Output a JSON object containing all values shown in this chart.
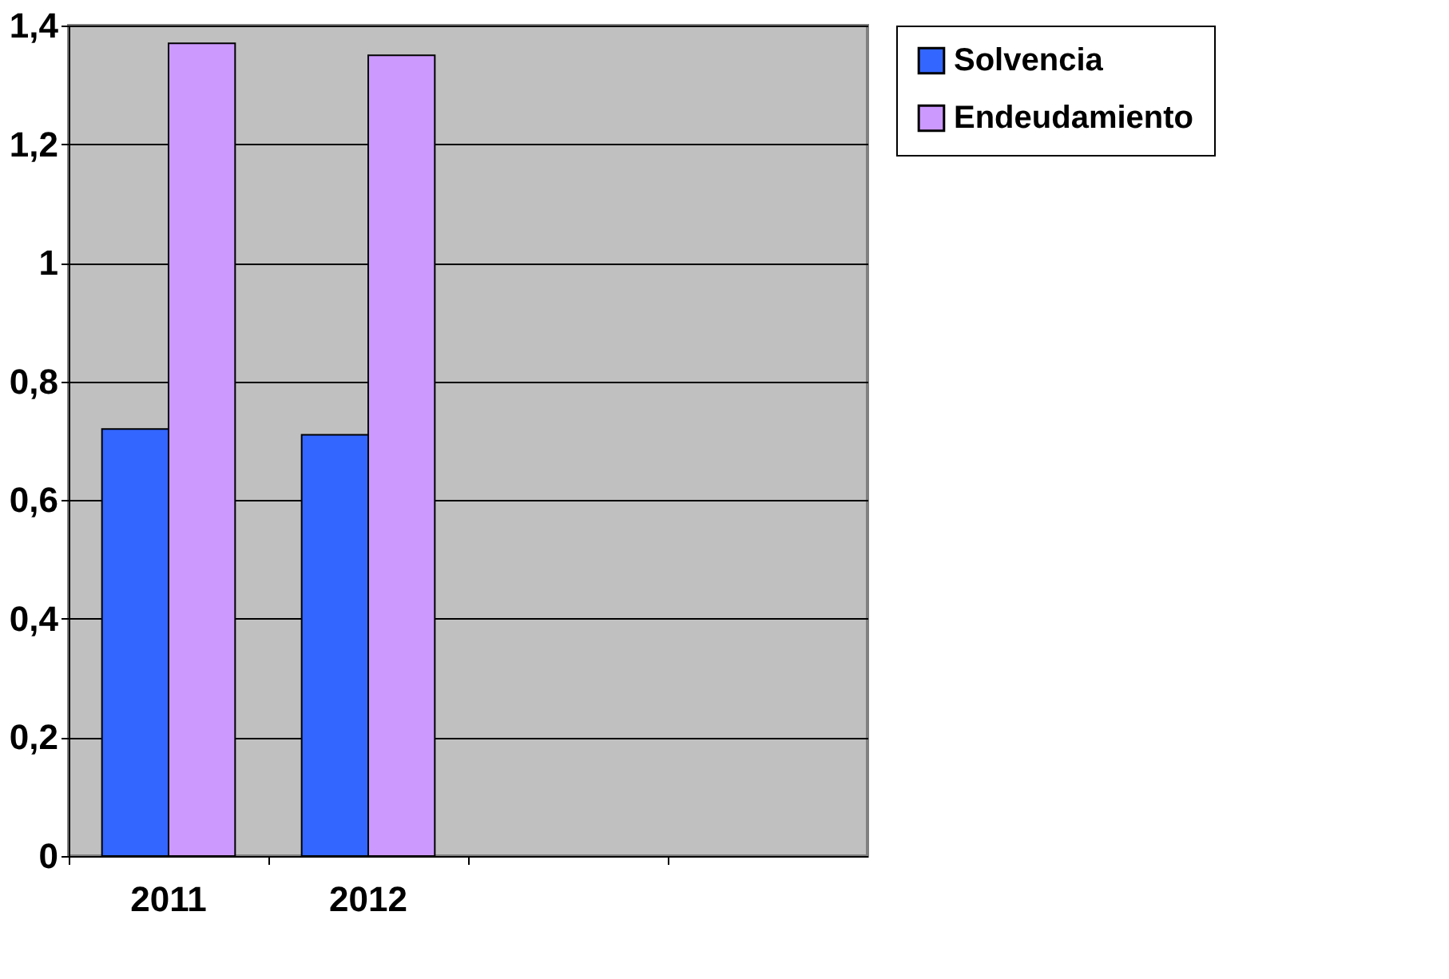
{
  "chart_data": {
    "type": "bar",
    "categories": [
      "2011",
      "2012",
      null,
      null
    ],
    "series": [
      {
        "name": "Solvencia",
        "color": "#3366ff",
        "values": [
          0.72,
          0.71,
          null,
          null
        ]
      },
      {
        "name": "Endeudamiento",
        "color": "#cc99ff",
        "values": [
          1.37,
          1.35,
          null,
          null
        ]
      }
    ],
    "ylim": [
      0,
      1.4
    ],
    "yticks": [
      0,
      {
        "value": 0.2,
        "label": "0,2"
      },
      {
        "value": 0.4,
        "label": "0,4"
      },
      {
        "value": 0.6,
        "label": "0,6"
      },
      {
        "value": 0.8,
        "label": "0,8"
      },
      1,
      {
        "value": 1.2,
        "label": "1,2"
      },
      {
        "value": 1.4,
        "label": "1,4"
      }
    ],
    "grid": "y",
    "legend": "right"
  }
}
